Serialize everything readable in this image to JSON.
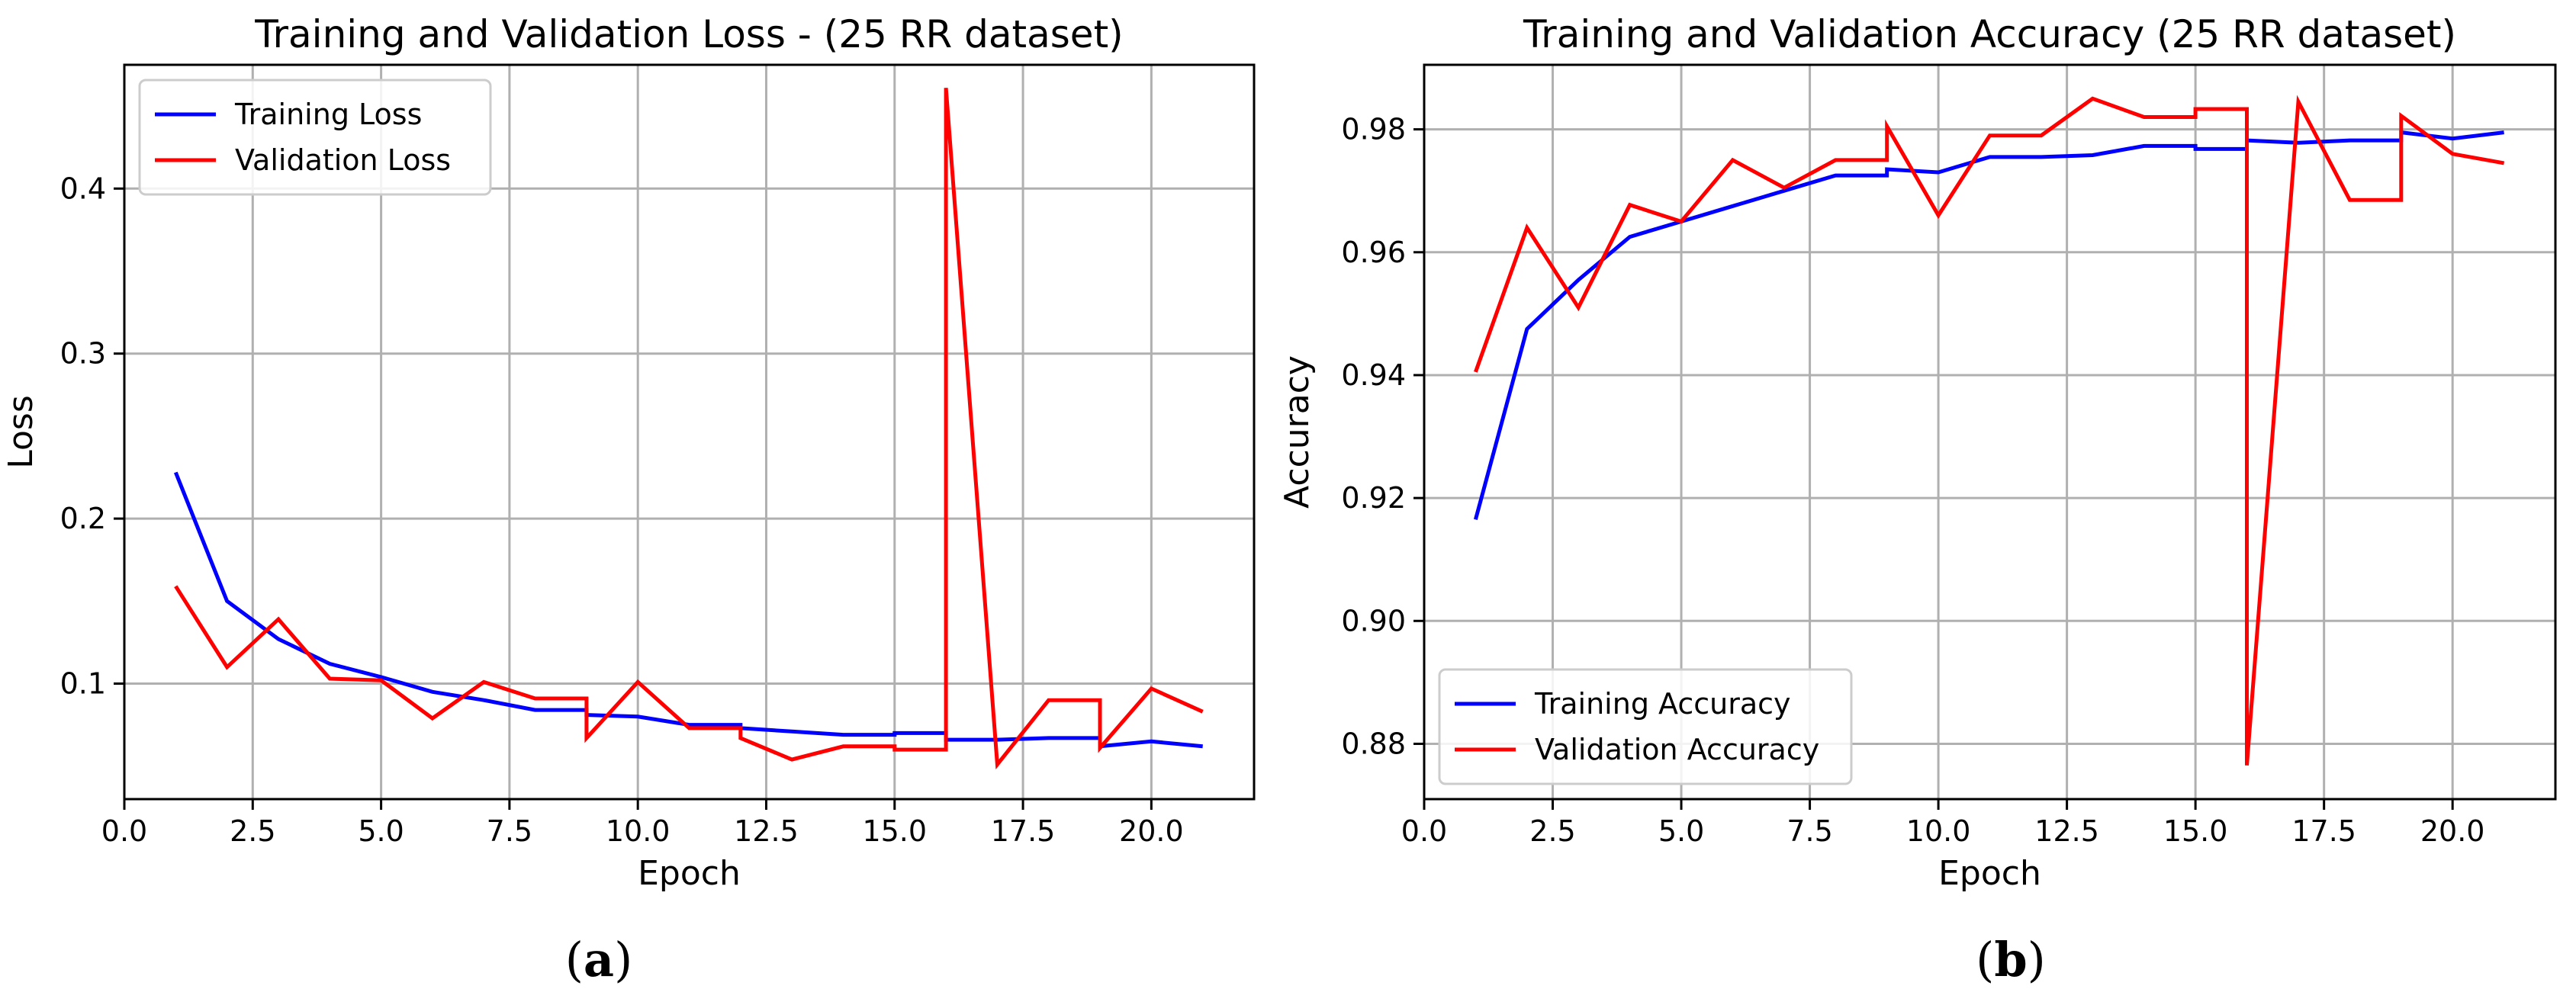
{
  "chart_data": [
    {
      "type": "line",
      "title": "Training and Validation Loss - (25 RR dataset)",
      "xlabel": "Epoch",
      "ylabel": "Loss",
      "xlim": [
        0,
        22
      ],
      "ylim": [
        0.03,
        0.475
      ],
      "xticks": [
        0.0,
        2.5,
        5.0,
        7.5,
        10.0,
        12.5,
        15.0,
        17.5,
        20.0
      ],
      "xtick_labels": [
        "0.0",
        "2.5",
        "5.0",
        "7.5",
        "10.0",
        "12.5",
        "15.0",
        "17.5",
        "20.0"
      ],
      "yticks": [
        0.1,
        0.2,
        0.3,
        0.4
      ],
      "ytick_labels": [
        "0.1",
        "0.2",
        "0.3",
        "0.4"
      ],
      "grid": true,
      "legend_position": "upper-left",
      "series": [
        {
          "name": "Training Loss",
          "color": "#0000ff",
          "x": [
            1,
            2,
            3,
            4,
            5,
            6,
            7,
            8,
            9,
            9,
            10,
            11,
            12,
            12,
            13,
            14,
            15,
            15,
            16,
            16,
            17,
            18,
            19,
            19,
            20,
            21
          ],
          "y": [
            0.228,
            0.15,
            0.127,
            0.112,
            0.104,
            0.095,
            0.09,
            0.084,
            0.084,
            0.081,
            0.08,
            0.075,
            0.075,
            0.073,
            0.071,
            0.069,
            0.069,
            0.07,
            0.07,
            0.066,
            0.066,
            0.067,
            0.067,
            0.062,
            0.065,
            0.062
          ]
        },
        {
          "name": "Validation Loss",
          "color": "#ff0000",
          "x": [
            1,
            2,
            3,
            4,
            5,
            6,
            7,
            8,
            9,
            9,
            10,
            11,
            12,
            12,
            13,
            14,
            15,
            15,
            16,
            16,
            17,
            18,
            19,
            19,
            20,
            21
          ],
          "y": [
            0.159,
            0.11,
            0.139,
            0.103,
            0.102,
            0.079,
            0.101,
            0.091,
            0.091,
            0.067,
            0.101,
            0.073,
            0.073,
            0.067,
            0.054,
            0.062,
            0.062,
            0.06,
            0.06,
            0.461,
            0.051,
            0.09,
            0.09,
            0.061,
            0.097,
            0.083
          ]
        }
      ]
    },
    {
      "type": "line",
      "title": "Training and Validation Accuracy (25 RR dataset)",
      "xlabel": "Epoch",
      "ylabel": "Accuracy",
      "xlim": [
        0,
        22
      ],
      "ylim": [
        0.871,
        0.9905
      ],
      "xticks": [
        0.0,
        2.5,
        5.0,
        7.5,
        10.0,
        12.5,
        15.0,
        17.5,
        20.0
      ],
      "xtick_labels": [
        "0.0",
        "2.5",
        "5.0",
        "7.5",
        "10.0",
        "12.5",
        "15.0",
        "17.5",
        "20.0"
      ],
      "yticks": [
        0.88,
        0.9,
        0.92,
        0.94,
        0.96,
        0.98
      ],
      "ytick_labels": [
        "0.88",
        "0.90",
        "0.92",
        "0.94",
        "0.96",
        "0.98"
      ],
      "grid": true,
      "legend_position": "lower-left",
      "series": [
        {
          "name": "Training Accuracy",
          "color": "#0000ff",
          "x": [
            1,
            2,
            3,
            4,
            5,
            6,
            7,
            8,
            9,
            9,
            10,
            11,
            12,
            12,
            13,
            14,
            15,
            15,
            16,
            16,
            17,
            18,
            19,
            19,
            20,
            21
          ],
          "y": [
            0.9165,
            0.9475,
            0.9555,
            0.9625,
            0.965,
            0.9675,
            0.97,
            0.9725,
            0.9725,
            0.9735,
            0.973,
            0.9755,
            0.9755,
            0.9755,
            0.9758,
            0.9773,
            0.9773,
            0.9768,
            0.9768,
            0.9782,
            0.9778,
            0.9782,
            0.9782,
            0.9795,
            0.9785,
            0.9795
          ]
        },
        {
          "name": "Validation Accuracy",
          "color": "#ff0000",
          "x": [
            1,
            2,
            3,
            4,
            5,
            6,
            7,
            8,
            9,
            9,
            10,
            11,
            12,
            12,
            13,
            14,
            15,
            15,
            16,
            16,
            17,
            18,
            19,
            19,
            20,
            21
          ],
          "y": [
            0.9405,
            0.964,
            0.951,
            0.9677,
            0.965,
            0.975,
            0.9705,
            0.975,
            0.975,
            0.9805,
            0.966,
            0.979,
            0.979,
            0.979,
            0.985,
            0.982,
            0.982,
            0.9833,
            0.9833,
            0.8765,
            0.9845,
            0.9685,
            0.9685,
            0.9822,
            0.976,
            0.9745
          ]
        }
      ]
    }
  ],
  "captions": {
    "a": "a",
    "b": "b"
  }
}
